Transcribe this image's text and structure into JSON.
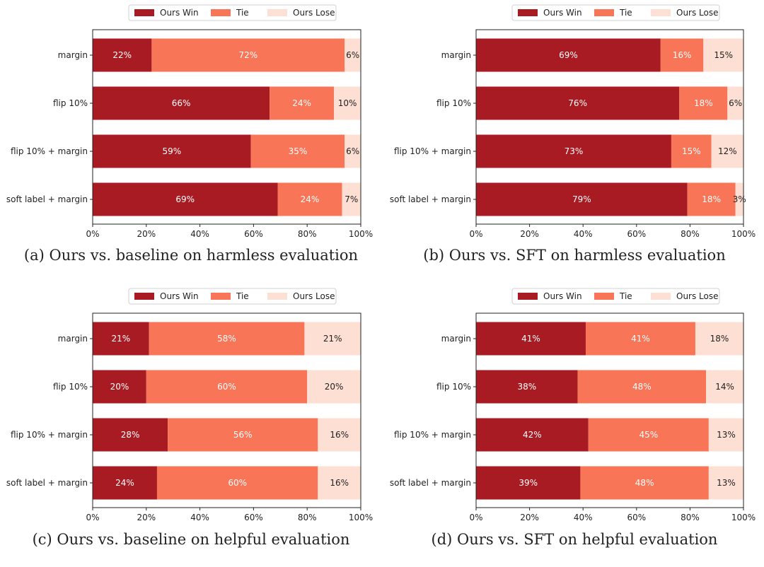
{
  "colors": {
    "win": "#a91b23",
    "tie": "#f87557",
    "lose": "#fde0d3"
  },
  "legend": [
    "Ours Win",
    "Tie",
    "Ours Lose"
  ],
  "chart_data": [
    {
      "type": "bar",
      "orientation": "horizontal",
      "stacked": true,
      "caption": "(a) Ours vs. baseline on harmless evaluation",
      "categories": [
        "margin",
        "flip 10%",
        "flip 10% + margin",
        "soft label + margin"
      ],
      "series": [
        {
          "name": "Ours Win",
          "values": [
            22,
            66,
            59,
            69
          ]
        },
        {
          "name": "Tie",
          "values": [
            72,
            24,
            35,
            24
          ]
        },
        {
          "name": "Ours Lose",
          "values": [
            6,
            10,
            6,
            7
          ]
        }
      ],
      "xlim": [
        0,
        100
      ],
      "xticks": [
        "0%",
        "20%",
        "40%",
        "60%",
        "80%",
        "100%"
      ],
      "legend_position": "top-center"
    },
    {
      "type": "bar",
      "orientation": "horizontal",
      "stacked": true,
      "caption": "(b) Ours vs. SFT on harmless evaluation",
      "categories": [
        "margin",
        "flip 10%",
        "flip 10% + margin",
        "soft label + margin"
      ],
      "series": [
        {
          "name": "Ours Win",
          "values": [
            69,
            76,
            73,
            79
          ]
        },
        {
          "name": "Tie",
          "values": [
            16,
            18,
            15,
            18
          ]
        },
        {
          "name": "Ours Lose",
          "values": [
            15,
            6,
            12,
            3
          ]
        }
      ],
      "xlim": [
        0,
        100
      ],
      "xticks": [
        "0%",
        "20%",
        "40%",
        "60%",
        "80%",
        "100%"
      ],
      "legend_position": "top-center"
    },
    {
      "type": "bar",
      "orientation": "horizontal",
      "stacked": true,
      "caption": "(c) Ours vs. baseline on helpful evaluation",
      "categories": [
        "margin",
        "flip 10%",
        "flip 10% + margin",
        "soft label + margin"
      ],
      "series": [
        {
          "name": "Ours Win",
          "values": [
            21,
            20,
            28,
            24
          ]
        },
        {
          "name": "Tie",
          "values": [
            58,
            60,
            56,
            60
          ]
        },
        {
          "name": "Ours Lose",
          "values": [
            21,
            20,
            16,
            16
          ]
        }
      ],
      "xlim": [
        0,
        100
      ],
      "xticks": [
        "0%",
        "20%",
        "40%",
        "60%",
        "80%",
        "100%"
      ],
      "legend_position": "top-center"
    },
    {
      "type": "bar",
      "orientation": "horizontal",
      "stacked": true,
      "caption": "(d) Ours vs. SFT on helpful evaluation",
      "categories": [
        "margin",
        "flip 10%",
        "flip 10% + margin",
        "soft label + margin"
      ],
      "series": [
        {
          "name": "Ours Win",
          "values": [
            41,
            38,
            42,
            39
          ]
        },
        {
          "name": "Tie",
          "values": [
            41,
            48,
            45,
            48
          ]
        },
        {
          "name": "Ours Lose",
          "values": [
            18,
            14,
            13,
            13
          ]
        }
      ],
      "xlim": [
        0,
        100
      ],
      "xticks": [
        "0%",
        "20%",
        "40%",
        "60%",
        "80%",
        "100%"
      ],
      "legend_position": "top-center"
    }
  ]
}
